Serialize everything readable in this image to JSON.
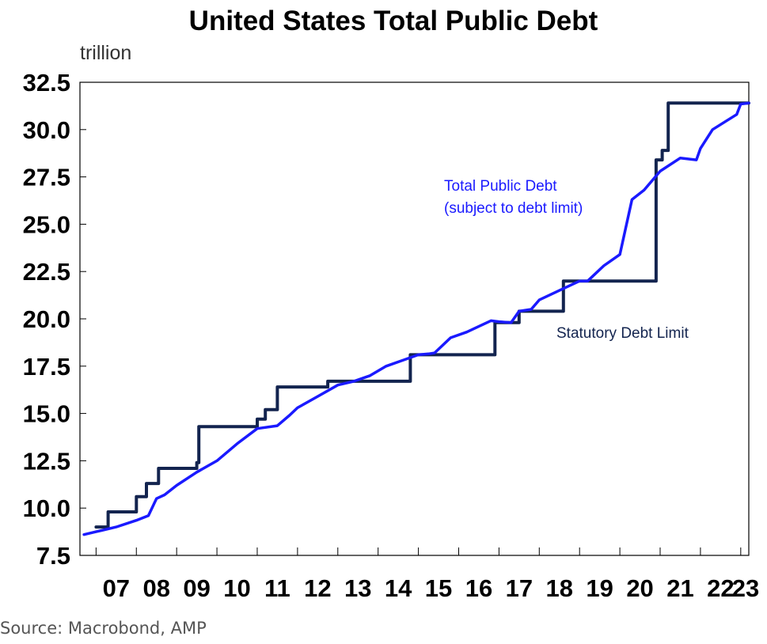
{
  "chart_data": {
    "type": "line",
    "title": "United States Total Public Debt",
    "ylabel": "trillion",
    "xlabel": "",
    "ylim": [
      7.5,
      32.5
    ],
    "yticks": [
      "7.5",
      "10.0",
      "12.5",
      "15.0",
      "17.5",
      "20.0",
      "22.5",
      "25.0",
      "27.5",
      "30.0",
      "32.5"
    ],
    "xlim": [
      2006.6,
      2023.2
    ],
    "xticks": [
      "07",
      "08",
      "09",
      "10",
      "11",
      "12",
      "13",
      "14",
      "15",
      "16",
      "17",
      "18",
      "19",
      "20",
      "21",
      "22",
      "23"
    ],
    "series": [
      {
        "name": "Total Public Debt (subject to debt limit)",
        "color": "#1a1aff",
        "points": [
          [
            2006.7,
            8.6
          ],
          [
            2007.0,
            8.75
          ],
          [
            2007.5,
            9.0
          ],
          [
            2008.0,
            9.35
          ],
          [
            2008.3,
            9.6
          ],
          [
            2008.5,
            10.5
          ],
          [
            2008.7,
            10.7
          ],
          [
            2009.0,
            11.2
          ],
          [
            2009.5,
            11.9
          ],
          [
            2010.0,
            12.5
          ],
          [
            2010.5,
            13.4
          ],
          [
            2011.0,
            14.2
          ],
          [
            2011.5,
            14.35
          ],
          [
            2011.8,
            14.9
          ],
          [
            2012.0,
            15.3
          ],
          [
            2012.5,
            15.9
          ],
          [
            2013.0,
            16.5
          ],
          [
            2013.4,
            16.7
          ],
          [
            2013.8,
            17.0
          ],
          [
            2014.2,
            17.5
          ],
          [
            2014.6,
            17.8
          ],
          [
            2015.0,
            18.1
          ],
          [
            2015.25,
            18.15
          ],
          [
            2015.4,
            18.2
          ],
          [
            2015.8,
            19.0
          ],
          [
            2016.2,
            19.3
          ],
          [
            2016.5,
            19.6
          ],
          [
            2016.8,
            19.9
          ],
          [
            2017.0,
            19.85
          ],
          [
            2017.3,
            19.8
          ],
          [
            2017.5,
            20.4
          ],
          [
            2017.8,
            20.5
          ],
          [
            2018.0,
            21.0
          ],
          [
            2018.5,
            21.5
          ],
          [
            2019.0,
            22.0
          ],
          [
            2019.2,
            22.0
          ],
          [
            2019.6,
            22.8
          ],
          [
            2020.0,
            23.4
          ],
          [
            2020.3,
            26.3
          ],
          [
            2020.6,
            26.8
          ],
          [
            2021.0,
            27.8
          ],
          [
            2021.5,
            28.5
          ],
          [
            2021.9,
            28.4
          ],
          [
            2022.0,
            29.0
          ],
          [
            2022.3,
            30.0
          ],
          [
            2022.6,
            30.4
          ],
          [
            2022.9,
            30.8
          ],
          [
            2023.0,
            31.35
          ],
          [
            2023.2,
            31.4
          ]
        ]
      },
      {
        "name": "Statutory Debt Limit",
        "color": "#13244f",
        "points": [
          [
            2007.0,
            9.0
          ],
          [
            2007.3,
            9.0
          ],
          [
            2007.3,
            9.8
          ],
          [
            2008.0,
            9.8
          ],
          [
            2008.0,
            10.6
          ],
          [
            2008.25,
            10.6
          ],
          [
            2008.25,
            11.3
          ],
          [
            2008.55,
            11.3
          ],
          [
            2008.55,
            12.1
          ],
          [
            2009.5,
            12.1
          ],
          [
            2009.5,
            12.4
          ],
          [
            2009.55,
            12.4
          ],
          [
            2009.55,
            14.3
          ],
          [
            2011.0,
            14.3
          ],
          [
            2011.0,
            14.7
          ],
          [
            2011.2,
            14.7
          ],
          [
            2011.2,
            15.2
          ],
          [
            2011.5,
            15.2
          ],
          [
            2011.5,
            16.4
          ],
          [
            2012.75,
            16.4
          ],
          [
            2012.75,
            16.7
          ],
          [
            2014.8,
            16.7
          ],
          [
            2014.8,
            18.1
          ],
          [
            2016.9,
            18.1
          ],
          [
            2016.9,
            19.8
          ],
          [
            2017.5,
            19.8
          ],
          [
            2017.5,
            20.4
          ],
          [
            2018.6,
            20.4
          ],
          [
            2018.6,
            22.0
          ],
          [
            2020.9,
            22.0
          ],
          [
            2020.9,
            28.4
          ],
          [
            2021.05,
            28.4
          ],
          [
            2021.05,
            28.9
          ],
          [
            2021.2,
            28.9
          ],
          [
            2021.2,
            31.4
          ],
          [
            2023.2,
            31.4
          ]
        ]
      }
    ],
    "annotations": [
      {
        "text": "Total Public Debt",
        "color": "#1a1aff"
      },
      {
        "text": "(subject to debt limit)",
        "color": "#1a1aff"
      },
      {
        "text": "Statutory Debt Limit",
        "color": "#13244f"
      }
    ]
  },
  "source": "Source: Macrobond, AMP"
}
